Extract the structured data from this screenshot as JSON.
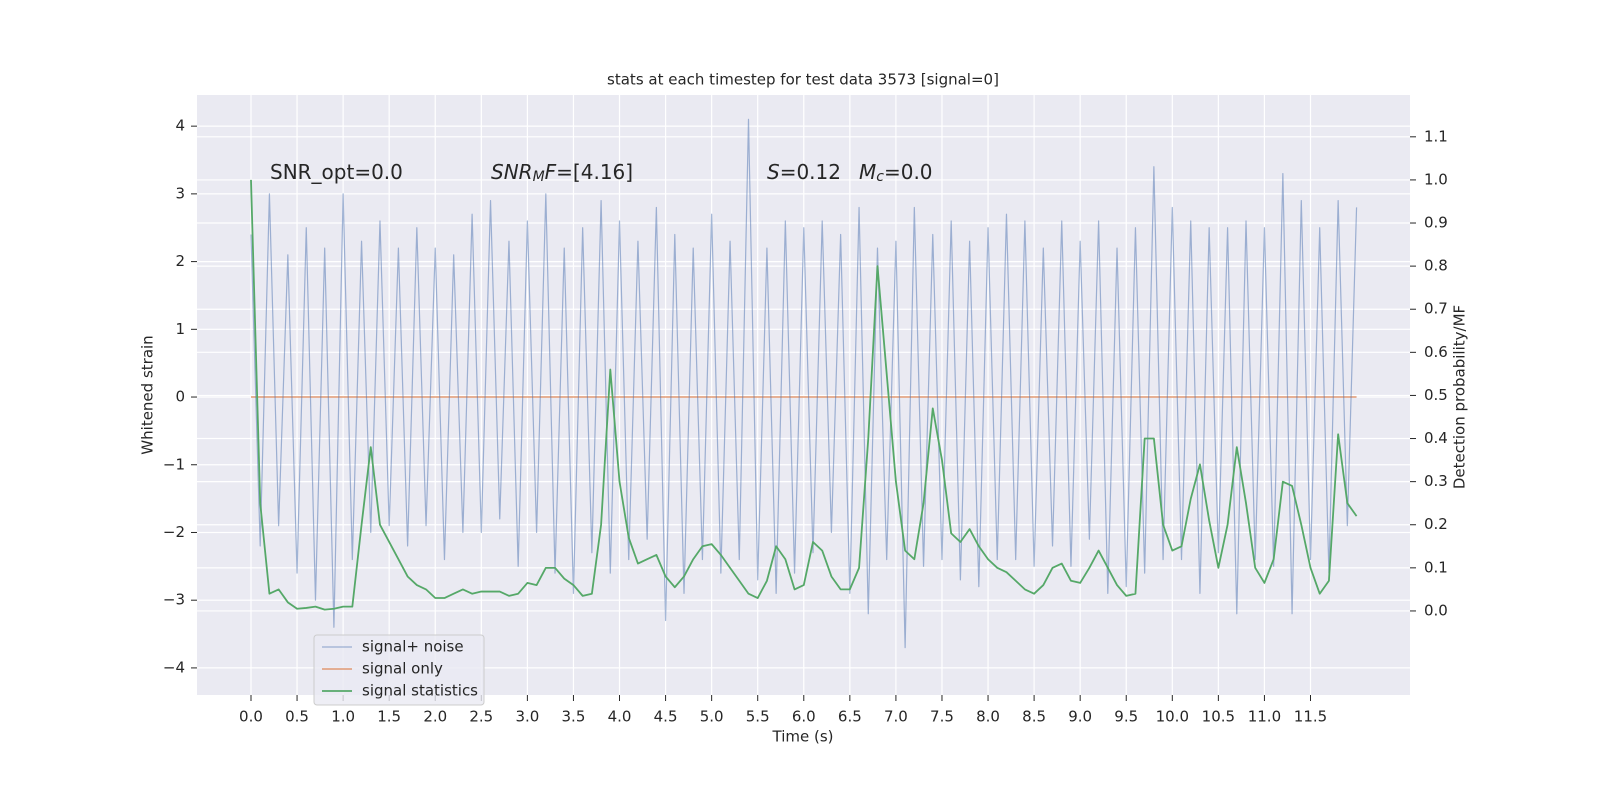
{
  "chart_data": {
    "type": "line",
    "title": "stats at each timestep for test data 3573 [signal=0]",
    "xlabel": "Time (s)",
    "ylabel": "Whitened strain",
    "y2label": "Detection probability/MF",
    "annotations": [
      [
        {
          "text": "SNR_opt=0.0",
          "style": "normal"
        }
      ],
      [
        {
          "text": "SNR",
          "style": "italic"
        },
        {
          "text": "M",
          "style": "sub"
        },
        {
          "text": "F",
          "style": "italic"
        },
        {
          "text": "=[4.16]",
          "style": "normal"
        }
      ],
      [
        {
          "text": "S",
          "style": "italic"
        },
        {
          "text": "=0.12",
          "style": "normal"
        }
      ],
      [
        {
          "text": "M",
          "style": "italic"
        },
        {
          "text": "c",
          "style": "sub"
        },
        {
          "text": "=0.0",
          "style": "normal"
        }
      ]
    ],
    "x": [
      0.0,
      0.1,
      0.2,
      0.3,
      0.4,
      0.5,
      0.6,
      0.7,
      0.8,
      0.9,
      1.0,
      1.1,
      1.2,
      1.3,
      1.4,
      1.5,
      1.6,
      1.7,
      1.8,
      1.9,
      2.0,
      2.1,
      2.2,
      2.3,
      2.4,
      2.5,
      2.6,
      2.7,
      2.8,
      2.9,
      3.0,
      3.1,
      3.2,
      3.3,
      3.4,
      3.5,
      3.6,
      3.7,
      3.8,
      3.9,
      4.0,
      4.1,
      4.2,
      4.3,
      4.4,
      4.5,
      4.6,
      4.7,
      4.8,
      4.9,
      5.0,
      5.1,
      5.2,
      5.3,
      5.4,
      5.5,
      5.6,
      5.7,
      5.8,
      5.9,
      6.0,
      6.1,
      6.2,
      6.3,
      6.4,
      6.5,
      6.6,
      6.7,
      6.8,
      6.9,
      7.0,
      7.1,
      7.2,
      7.3,
      7.4,
      7.5,
      7.6,
      7.7,
      7.8,
      7.9,
      8.0,
      8.1,
      8.2,
      8.3,
      8.4,
      8.5,
      8.6,
      8.7,
      8.8,
      8.9,
      9.0,
      9.1,
      9.2,
      9.3,
      9.4,
      9.5,
      9.6,
      9.7,
      9.8,
      9.9,
      10.0,
      10.1,
      10.2,
      10.3,
      10.4,
      10.5,
      10.6,
      10.7,
      10.8,
      10.9,
      11.0,
      11.1,
      11.2,
      11.3,
      11.4,
      11.5,
      11.6,
      11.7,
      11.8,
      11.9,
      12.0
    ],
    "series": [
      {
        "name": "signal+ noise",
        "color": "#4c72b0",
        "axis": "y",
        "values": [
          2.4,
          -2.2,
          3.0,
          -1.9,
          2.1,
          -2.6,
          2.5,
          -3.0,
          2.2,
          -3.4,
          3.0,
          -2.4,
          2.3,
          -2.0,
          2.6,
          -1.9,
          2.2,
          -2.2,
          2.5,
          -1.9,
          2.2,
          -2.4,
          2.1,
          -2.0,
          2.7,
          -2.0,
          2.9,
          -1.8,
          2.3,
          -2.5,
          2.6,
          -2.0,
          3.0,
          -2.6,
          2.2,
          -2.9,
          2.5,
          -2.3,
          2.9,
          -2.6,
          2.6,
          -2.4,
          2.3,
          -2.1,
          2.8,
          -3.3,
          2.4,
          -2.9,
          2.2,
          -2.4,
          2.7,
          -2.6,
          2.3,
          -2.4,
          4.1,
          -2.7,
          2.2,
          -2.9,
          2.6,
          -2.6,
          2.5,
          -2.3,
          2.6,
          -2.0,
          2.4,
          -2.9,
          2.8,
          -3.2,
          2.2,
          -2.4,
          2.3,
          -3.7,
          2.8,
          -2.5,
          2.4,
          -2.4,
          2.6,
          -2.7,
          2.3,
          -2.8,
          2.5,
          -2.4,
          2.7,
          -2.4,
          2.6,
          -2.5,
          2.2,
          -2.2,
          2.6,
          -2.5,
          2.3,
          -2.1,
          2.6,
          -2.9,
          2.2,
          -2.8,
          2.5,
          -2.6,
          3.4,
          -2.4,
          2.8,
          -2.4,
          2.6,
          -2.9,
          2.5,
          -2.3,
          2.5,
          -3.2,
          2.6,
          -2.4,
          2.5,
          -2.5,
          3.3,
          -3.2,
          2.9,
          -2.4,
          2.5,
          -2.6,
          2.9,
          -1.9,
          2.8
        ]
      },
      {
        "name": "signal only",
        "color": "#dd8452",
        "axis": "y",
        "values": [
          0,
          0,
          0,
          0,
          0,
          0,
          0,
          0,
          0,
          0,
          0,
          0,
          0,
          0,
          0,
          0,
          0,
          0,
          0,
          0,
          0,
          0,
          0,
          0,
          0,
          0,
          0,
          0,
          0,
          0,
          0,
          0,
          0,
          0,
          0,
          0,
          0,
          0,
          0,
          0,
          0,
          0,
          0,
          0,
          0,
          0,
          0,
          0,
          0,
          0,
          0,
          0,
          0,
          0,
          0,
          0,
          0,
          0,
          0,
          0,
          0,
          0,
          0,
          0,
          0,
          0,
          0,
          0,
          0,
          0,
          0,
          0,
          0,
          0,
          0,
          0,
          0,
          0,
          0,
          0,
          0,
          0,
          0,
          0,
          0,
          0,
          0,
          0,
          0,
          0,
          0,
          0,
          0,
          0,
          0,
          0,
          0,
          0,
          0,
          0,
          0,
          0,
          0,
          0,
          0,
          0,
          0,
          0,
          0,
          0,
          0,
          0,
          0,
          0,
          0,
          0,
          0,
          0,
          0,
          0,
          0
        ]
      },
      {
        "name": "signal statistics",
        "color": "#55a868",
        "axis": "y2",
        "values": [
          1.0,
          0.25,
          0.04,
          0.05,
          0.02,
          0.005,
          0.007,
          0.01,
          0.003,
          0.005,
          0.01,
          0.01,
          0.2,
          0.38,
          0.2,
          0.16,
          0.12,
          0.08,
          0.06,
          0.05,
          0.03,
          0.03,
          0.04,
          0.05,
          0.04,
          0.045,
          0.045,
          0.045,
          0.035,
          0.04,
          0.065,
          0.06,
          0.1,
          0.1,
          0.075,
          0.06,
          0.035,
          0.04,
          0.2,
          0.56,
          0.3,
          0.17,
          0.11,
          0.12,
          0.13,
          0.08,
          0.055,
          0.08,
          0.12,
          0.15,
          0.155,
          0.13,
          0.1,
          0.07,
          0.04,
          0.03,
          0.07,
          0.15,
          0.12,
          0.05,
          0.06,
          0.16,
          0.14,
          0.08,
          0.05,
          0.05,
          0.1,
          0.4,
          0.8,
          0.55,
          0.3,
          0.14,
          0.12,
          0.25,
          0.47,
          0.35,
          0.18,
          0.16,
          0.19,
          0.15,
          0.12,
          0.1,
          0.09,
          0.07,
          0.05,
          0.04,
          0.06,
          0.1,
          0.11,
          0.07,
          0.065,
          0.1,
          0.14,
          0.1,
          0.06,
          0.035,
          0.04,
          0.4,
          0.4,
          0.2,
          0.14,
          0.15,
          0.26,
          0.34,
          0.21,
          0.1,
          0.2,
          0.38,
          0.25,
          0.1,
          0.065,
          0.12,
          0.3,
          0.29,
          0.2,
          0.1,
          0.04,
          0.07,
          0.41,
          0.25,
          0.22
        ]
      }
    ],
    "xlim": [
      -0.586,
      12.58
    ],
    "xticks": [
      {
        "value": 0,
        "label": "0.0"
      },
      0.5,
      {
        "value": 1,
        "label": "1.0"
      },
      1.5,
      {
        "value": 2,
        "label": "2.0"
      },
      2.5,
      {
        "value": 3,
        "label": "3.0"
      },
      3.5,
      {
        "value": 4,
        "label": "4.0"
      },
      4.5,
      {
        "value": 5,
        "label": "5.0"
      },
      5.5,
      {
        "value": 6,
        "label": "6.0"
      },
      6.5,
      {
        "value": 7,
        "label": "7.0"
      },
      7.5,
      {
        "value": 8,
        "label": "8.0"
      },
      8.5,
      {
        "value": 9,
        "label": "9.0"
      },
      9.5,
      {
        "value": 10,
        "label": "10.0"
      },
      10.5,
      {
        "value": 11,
        "label": "11.0"
      },
      11.5
    ],
    "ylim": [
      -4.4,
      4.46
    ],
    "yticks": [
      {
        "value": -4,
        "label": "−4"
      },
      {
        "value": -3,
        "label": "−3"
      },
      {
        "value": -2,
        "label": "−2"
      },
      {
        "value": -1,
        "label": "−1"
      },
      0,
      1,
      2,
      3,
      4
    ],
    "y2lim": [
      -0.195,
      1.197
    ],
    "y2ticks": [
      {
        "value": 0,
        "label": "0.0"
      },
      0.1,
      0.2,
      0.3,
      0.4,
      0.5,
      0.6,
      0.7,
      0.8,
      0.9,
      {
        "value": 1,
        "label": "1.0"
      },
      1.1
    ],
    "grid": true,
    "legend": "lower left",
    "background": "#eaeaf2"
  }
}
